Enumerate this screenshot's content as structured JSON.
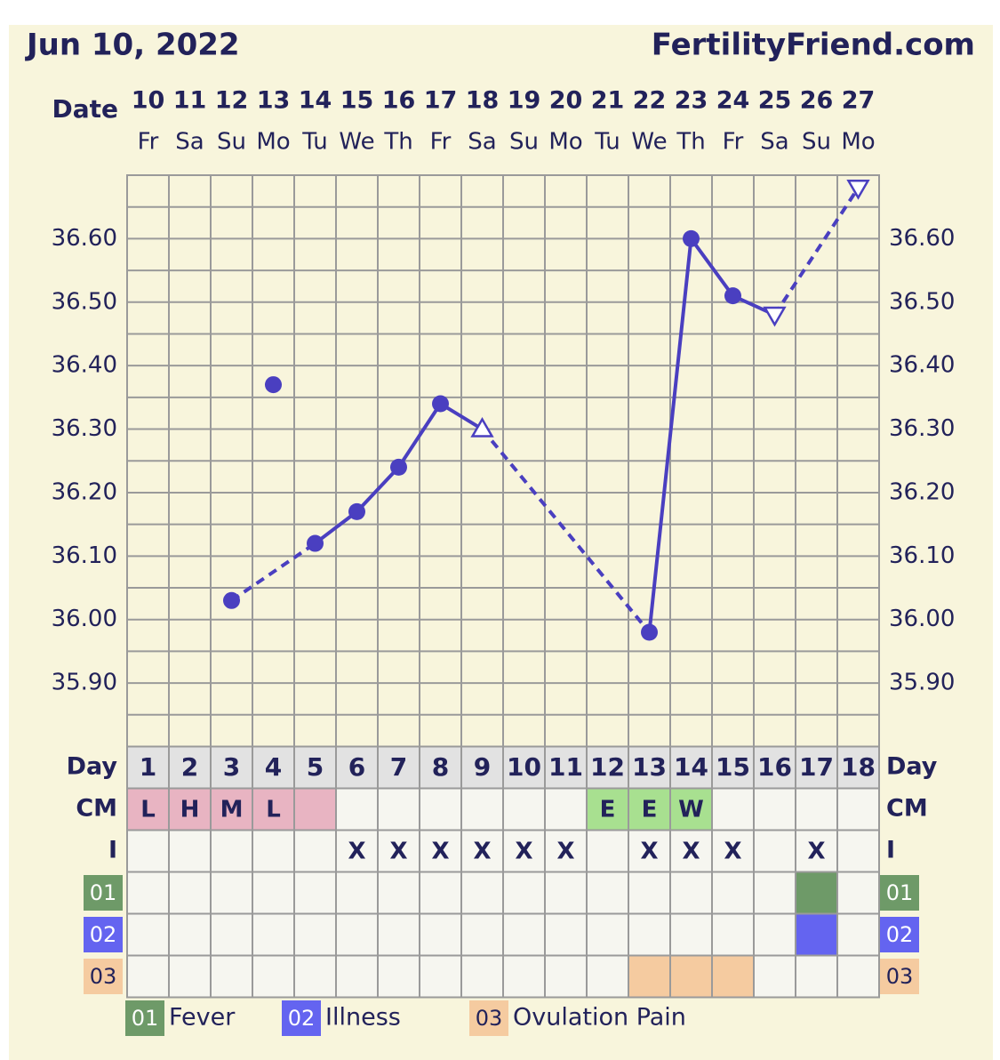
{
  "header": {
    "date": "Jun 10, 2022",
    "site": "FertilityFriend.com"
  },
  "chart_data": {
    "type": "line",
    "date_label": "Date",
    "dates": [
      "10",
      "11",
      "12",
      "13",
      "14",
      "15",
      "16",
      "17",
      "18",
      "19",
      "20",
      "21",
      "22",
      "23",
      "24",
      "25",
      "26",
      "27"
    ],
    "weekdays": [
      "Fr",
      "Sa",
      "Su",
      "Mo",
      "Tu",
      "We",
      "Th",
      "Fr",
      "Sa",
      "Su",
      "Mo",
      "Tu",
      "We",
      "Th",
      "Fr",
      "Sa",
      "Su",
      "Mo"
    ],
    "values": [
      null,
      null,
      36.03,
      36.37,
      36.12,
      36.17,
      36.24,
      36.34,
      36.3,
      null,
      null,
      null,
      35.98,
      36.6,
      36.51,
      36.48,
      null,
      36.68
    ],
    "markers": [
      null,
      null,
      "circle",
      "circle",
      "circle",
      "circle",
      "circle",
      "circle",
      "triangle-up",
      null,
      null,
      null,
      "circle",
      "circle",
      "circle",
      "triangle-down",
      null,
      "triangle-down"
    ],
    "excluded_days": [
      4
    ],
    "color": "#4a3fc0",
    "ylim": [
      35.8,
      36.7
    ],
    "yticks": [
      {
        "value": 35.9,
        "label": "35.90"
      },
      {
        "value": 36.0,
        "label": "36.00"
      },
      {
        "value": 36.1,
        "label": "36.10"
      },
      {
        "value": 36.2,
        "label": "36.20"
      },
      {
        "value": 36.3,
        "label": "36.30"
      },
      {
        "value": 36.4,
        "label": "36.40"
      },
      {
        "value": 36.5,
        "label": "36.50"
      },
      {
        "value": 36.6,
        "label": "36.60"
      }
    ],
    "minor_yticks": [
      35.85,
      35.95,
      36.05,
      36.15,
      36.25,
      36.35,
      36.45,
      36.55,
      36.65
    ]
  },
  "table": {
    "day_label": "Day",
    "days": [
      1,
      2,
      3,
      4,
      5,
      6,
      7,
      8,
      9,
      10,
      11,
      12,
      13,
      14,
      15,
      16,
      17,
      18
    ],
    "cm_label": "CM",
    "cm": [
      "L",
      "H",
      "M",
      "L",
      null,
      null,
      null,
      null,
      null,
      null,
      null,
      "E",
      "E",
      "W",
      null,
      null,
      null,
      null
    ],
    "cm_colors": [
      "#e8b4c2",
      "#e8b4c2",
      "#e8b4c2",
      "#e8b4c2",
      "#e8b4c2",
      null,
      null,
      null,
      null,
      null,
      null,
      "#a8e090",
      "#a8e090",
      "#a8e090",
      null,
      null,
      null,
      null
    ],
    "i_label": "I",
    "i": [
      null,
      null,
      null,
      null,
      null,
      "X",
      "X",
      "X",
      "X",
      "X",
      "X",
      null,
      "X",
      "X",
      "X",
      null,
      "X",
      null
    ],
    "symptoms": [
      {
        "code": "01",
        "name": "Fever",
        "color": "#6e9a68",
        "days": [
          17
        ]
      },
      {
        "code": "02",
        "name": "Illness",
        "color": "#6464f0",
        "days": [
          17
        ]
      },
      {
        "code": "03",
        "name": "Ovulation Pain",
        "color": "#f5cba0",
        "days": [
          13,
          14,
          15
        ]
      }
    ]
  }
}
